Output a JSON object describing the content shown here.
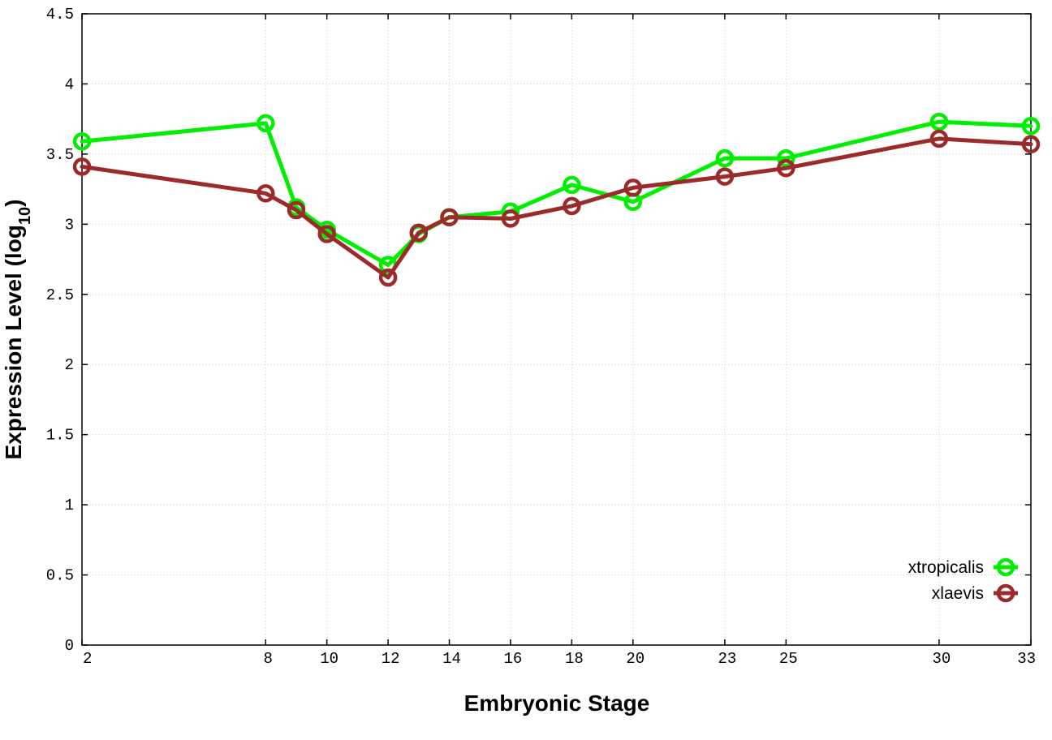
{
  "chart_data": {
    "type": "line",
    "xlabel": "Embryonic Stage",
    "ylabel_main": "Expression Level (log",
    "ylabel_sub": "10",
    "ylabel_close": ")",
    "ylim": [
      0,
      4.5
    ],
    "xlim": [
      2,
      33
    ],
    "grid": true,
    "legend_position": "bottom-right",
    "y_ticks": [
      "0",
      "0.5",
      "1",
      "1.5",
      "2",
      "2.5",
      "3",
      "3.5",
      "4",
      "4.5"
    ],
    "x_ticks": [
      "2",
      "8",
      "10",
      "12",
      "14",
      "16",
      "18",
      "20",
      "23",
      "25",
      "30",
      "33"
    ],
    "series": [
      {
        "name": "xtropicalis",
        "color": "#00ee00",
        "x": [
          2,
          8,
          9,
          10,
          12,
          13,
          14,
          16,
          18,
          20,
          23,
          25,
          30,
          33
        ],
        "y": [
          3.59,
          3.72,
          3.12,
          2.96,
          2.71,
          2.93,
          3.05,
          3.09,
          3.28,
          3.16,
          3.47,
          3.47,
          3.73,
          3.7
        ]
      },
      {
        "name": "xlaevis",
        "color": "#9b2a2a",
        "x": [
          2,
          8,
          9,
          10,
          12,
          13,
          14,
          16,
          18,
          20,
          23,
          25,
          30,
          33
        ],
        "y": [
          3.41,
          3.22,
          3.1,
          2.93,
          2.62,
          2.94,
          3.05,
          3.04,
          3.13,
          3.26,
          3.34,
          3.4,
          3.61,
          3.57
        ]
      }
    ]
  }
}
